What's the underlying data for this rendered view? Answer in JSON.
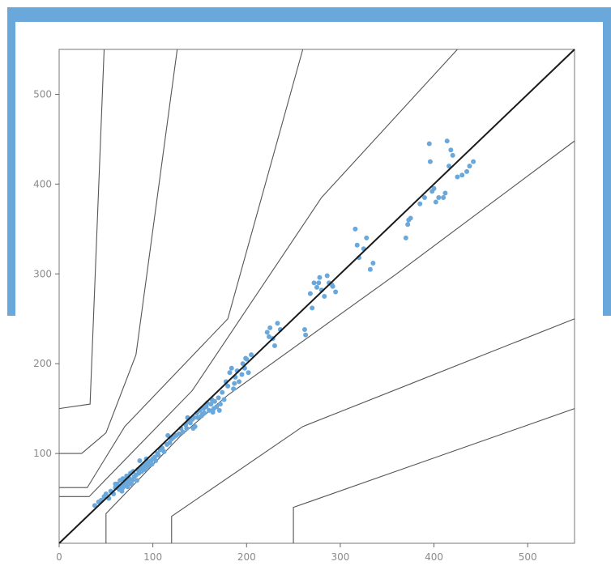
{
  "colors": {
    "frame": "#6aa8dc",
    "points": "#6aa8dc",
    "zones": "#555555",
    "identity": "#1a1a1a",
    "axes": "#666666"
  },
  "chart_data": {
    "type": "scatter",
    "title": "",
    "xlabel": "",
    "ylabel": "",
    "xlim": [
      0,
      550
    ],
    "ylim": [
      0,
      550
    ],
    "x_ticks": [
      "0",
      "100",
      "200",
      "300",
      "400",
      "500"
    ],
    "y_ticks": [
      "100",
      "200",
      "300",
      "400",
      "500"
    ],
    "grid": false,
    "identity_line": [
      [
        0,
        0
      ],
      [
        550,
        550
      ]
    ],
    "zone_lines": [
      [
        [
          0,
          150
        ],
        [
          33,
          155
        ],
        [
          48,
          550
        ]
      ],
      [
        [
          0,
          100
        ],
        [
          24,
          100
        ],
        [
          50,
          123
        ],
        [
          82,
          210
        ],
        [
          126,
          550
        ]
      ],
      [
        [
          0,
          62
        ],
        [
          30,
          62
        ],
        [
          70,
          130
        ],
        [
          180,
          250
        ],
        [
          260,
          550
        ]
      ],
      [
        [
          0,
          52
        ],
        [
          32,
          52
        ],
        [
          142,
          170
        ],
        [
          280,
          385
        ],
        [
          425,
          550
        ]
      ],
      [
        [
          50,
          0
        ],
        [
          50,
          33
        ],
        [
          130,
          120
        ],
        [
          180,
          165
        ],
        [
          360,
          300
        ],
        [
          550,
          448
        ]
      ],
      [
        [
          120,
          0
        ],
        [
          120,
          30
        ],
        [
          260,
          130
        ],
        [
          550,
          250
        ]
      ],
      [
        [
          250,
          0
        ],
        [
          250,
          40
        ],
        [
          550,
          150
        ]
      ]
    ],
    "series": [
      {
        "values": [
          [
            38,
            42
          ],
          [
            42,
            46
          ],
          [
            45,
            48
          ],
          [
            48,
            52
          ],
          [
            50,
            55
          ],
          [
            53,
            50
          ],
          [
            55,
            58
          ],
          [
            58,
            55
          ],
          [
            60,
            62
          ],
          [
            62,
            66
          ],
          [
            64,
            60
          ],
          [
            65,
            70
          ],
          [
            66,
            64
          ],
          [
            68,
            62
          ],
          [
            68,
            72
          ],
          [
            70,
            66
          ],
          [
            71,
            70
          ],
          [
            72,
            75
          ],
          [
            73,
            63
          ],
          [
            74,
            68
          ],
          [
            75,
            72
          ],
          [
            76,
            78
          ],
          [
            77,
            66
          ],
          [
            78,
            70
          ],
          [
            79,
            80
          ],
          [
            80,
            74
          ],
          [
            82,
            76
          ],
          [
            83,
            70
          ],
          [
            84,
            82
          ],
          [
            85,
            78
          ],
          [
            87,
            84
          ],
          [
            88,
            80
          ],
          [
            90,
            86
          ],
          [
            91,
            82
          ],
          [
            92,
            88
          ],
          [
            94,
            85
          ],
          [
            95,
            90
          ],
          [
            96,
            87
          ],
          [
            98,
            92
          ],
          [
            99,
            88
          ],
          [
            100,
            94
          ],
          [
            102,
            96
          ],
          [
            103,
            92
          ],
          [
            105,
            100
          ],
          [
            106,
            98
          ],
          [
            108,
            104
          ],
          [
            110,
            106
          ],
          [
            112,
            102
          ],
          [
            115,
            110
          ],
          [
            118,
            112
          ],
          [
            120,
            116
          ],
          [
            122,
            118
          ],
          [
            125,
            120
          ],
          [
            128,
            122
          ],
          [
            130,
            128
          ],
          [
            132,
            124
          ],
          [
            135,
            132
          ],
          [
            136,
            128
          ],
          [
            138,
            136
          ],
          [
            140,
            134
          ],
          [
            142,
            138
          ],
          [
            144,
            140
          ],
          [
            145,
            130
          ],
          [
            147,
            145
          ],
          [
            148,
            140
          ],
          [
            150,
            148
          ],
          [
            152,
            142
          ],
          [
            154,
            150
          ],
          [
            155,
            145
          ],
          [
            157,
            152
          ],
          [
            158,
            156
          ],
          [
            160,
            148
          ],
          [
            162,
            155
          ],
          [
            163,
            160
          ],
          [
            165,
            150
          ],
          [
            166,
            158
          ],
          [
            168,
            152
          ],
          [
            170,
            162
          ],
          [
            172,
            155
          ],
          [
            174,
            168
          ],
          [
            176,
            160
          ],
          [
            178,
            180
          ],
          [
            180,
            175
          ],
          [
            182,
            190
          ],
          [
            184,
            195
          ],
          [
            186,
            172
          ],
          [
            188,
            185
          ],
          [
            190,
            192
          ],
          [
            192,
            180
          ],
          [
            195,
            188
          ],
          [
            196,
            200
          ],
          [
            198,
            195
          ],
          [
            200,
            205
          ],
          [
            202,
            190
          ],
          [
            205,
            210
          ],
          [
            222,
            235
          ],
          [
            225,
            240
          ],
          [
            228,
            228
          ],
          [
            230,
            220
          ],
          [
            233,
            245
          ],
          [
            236,
            238
          ],
          [
            262,
            238
          ],
          [
            263,
            232
          ],
          [
            268,
            278
          ],
          [
            270,
            262
          ],
          [
            272,
            290
          ],
          [
            275,
            285
          ],
          [
            278,
            296
          ],
          [
            280,
            282
          ],
          [
            283,
            275
          ],
          [
            286,
            298
          ],
          [
            288,
            290
          ],
          [
            292,
            286
          ],
          [
            295,
            280
          ],
          [
            316,
            350
          ],
          [
            318,
            332
          ],
          [
            320,
            318
          ],
          [
            325,
            328
          ],
          [
            328,
            340
          ],
          [
            332,
            305
          ],
          [
            335,
            312
          ],
          [
            370,
            340
          ],
          [
            372,
            355
          ],
          [
            375,
            362
          ],
          [
            385,
            378
          ],
          [
            390,
            385
          ],
          [
            395,
            445
          ],
          [
            396,
            425
          ],
          [
            398,
            392
          ],
          [
            400,
            395
          ],
          [
            402,
            380
          ],
          [
            405,
            385
          ],
          [
            412,
            390
          ],
          [
            414,
            448
          ],
          [
            416,
            420
          ],
          [
            418,
            438
          ],
          [
            420,
            432
          ],
          [
            425,
            408
          ],
          [
            430,
            410
          ],
          [
            435,
            414
          ],
          [
            438,
            420
          ],
          [
            442,
            425
          ],
          [
            60,
            66
          ],
          [
            67,
            58
          ],
          [
            72,
            64
          ],
          [
            86,
            92
          ],
          [
            93,
            94
          ],
          [
            116,
            120
          ],
          [
            137,
            140
          ],
          [
            143,
            128
          ],
          [
            153,
            144
          ],
          [
            164,
            146
          ],
          [
            171,
            148
          ],
          [
            187,
            178
          ],
          [
            199,
            206
          ],
          [
            224,
            230
          ],
          [
            277,
            290
          ],
          [
            291,
            288
          ],
          [
            373,
            360
          ],
          [
            410,
            385
          ]
        ]
      }
    ]
  }
}
